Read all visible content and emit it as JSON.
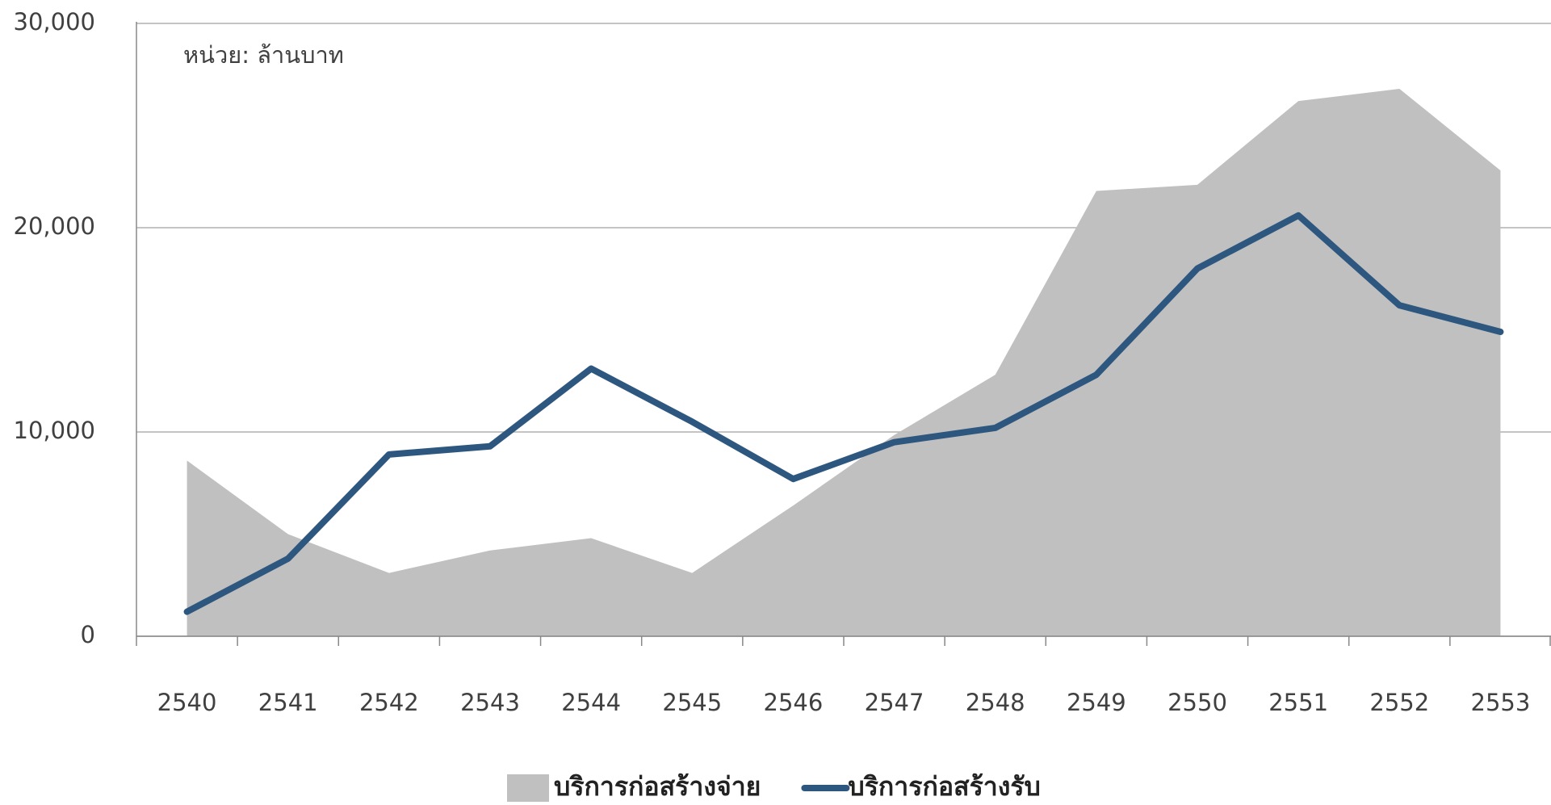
{
  "chart_data": {
    "type": "line",
    "annotation": "หน่วย: ล้านบาท",
    "categories": [
      "2540",
      "2541",
      "2542",
      "2543",
      "2544",
      "2545",
      "2546",
      "2547",
      "2548",
      "2549",
      "2550",
      "2551",
      "2552",
      "2553"
    ],
    "series": [
      {
        "name": "บริการก่อสร้างจ่าย",
        "type": "area",
        "color": "#c0c0c0",
        "values": [
          8600,
          5000,
          3100,
          4200,
          4800,
          3100,
          6400,
          9850,
          12800,
          21800,
          22100,
          26200,
          26800,
          22800
        ]
      },
      {
        "name": "บริการก่อสร้างรับ",
        "type": "line",
        "color": "#2e5780",
        "values": [
          1200,
          3800,
          8900,
          9300,
          13100,
          10500,
          7700,
          9500,
          10200,
          12800,
          18000,
          20600,
          16200,
          14900
        ]
      }
    ],
    "ylim": [
      0,
      30000
    ],
    "yticks": [
      0,
      {
        "value": 10000,
        "label": "10,000"
      },
      {
        "value": 20000,
        "label": "20,000"
      },
      {
        "value": 30000,
        "label": "30,000"
      }
    ],
    "grid": true,
    "legend": "bottom"
  }
}
